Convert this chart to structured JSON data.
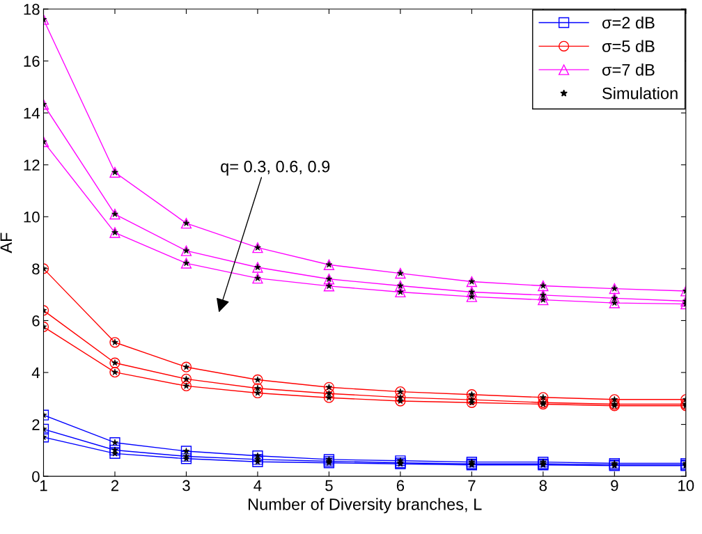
{
  "chart_data": {
    "type": "line",
    "xlabel": "Number of Diversity branches, L",
    "ylabel": "AF",
    "x": [
      1,
      2,
      3,
      4,
      5,
      6,
      7,
      8,
      9,
      10
    ],
    "xlim": [
      1,
      10
    ],
    "xticks": [
      1,
      2,
      3,
      4,
      5,
      6,
      7,
      8,
      9,
      10
    ],
    "ylim": [
      0,
      18
    ],
    "yticks": [
      0,
      2,
      4,
      6,
      8,
      10,
      12,
      14,
      16,
      18
    ],
    "grid": false,
    "legend": "top right",
    "line_style": "solid",
    "annotations": [
      "q= 0.3, 0.6, 0.9"
    ],
    "series": [
      {
        "name": "σ=2 dB",
        "color": "#0000ff",
        "marker": "square",
        "values": [
          2.36,
          1.3,
          0.97,
          0.79,
          0.65,
          0.6,
          0.55,
          0.55,
          0.5,
          0.5
        ]
      },
      {
        "color": "#0000ff",
        "marker": "square",
        "values": [
          1.82,
          1.01,
          0.77,
          0.65,
          0.58,
          0.52,
          0.48,
          0.48,
          0.44,
          0.44
        ]
      },
      {
        "color": "#0000ff",
        "marker": "square",
        "values": [
          1.51,
          0.88,
          0.68,
          0.56,
          0.52,
          0.48,
          0.44,
          0.44,
          0.41,
          0.41
        ]
      },
      {
        "name": "σ=5 dB",
        "color": "#ff0000",
        "marker": "circle",
        "values": [
          8.0,
          5.16,
          4.21,
          3.72,
          3.43,
          3.26,
          3.15,
          3.04,
          2.96,
          2.96
        ]
      },
      {
        "color": "#ff0000",
        "marker": "circle",
        "values": [
          6.39,
          4.37,
          3.75,
          3.39,
          3.19,
          3.04,
          2.95,
          2.84,
          2.78,
          2.78
        ]
      },
      {
        "color": "#ff0000",
        "marker": "circle",
        "values": [
          5.76,
          4.01,
          3.48,
          3.21,
          3.03,
          2.9,
          2.84,
          2.78,
          2.72,
          2.72
        ]
      },
      {
        "name": "σ=7 dB",
        "color": "#ff00ff",
        "marker": "triangle",
        "values": [
          17.6,
          11.71,
          9.75,
          8.81,
          8.15,
          7.82,
          7.5,
          7.34,
          7.23,
          7.14
        ]
      },
      {
        "color": "#ff00ff",
        "marker": "triangle",
        "values": [
          14.33,
          10.1,
          8.69,
          8.05,
          7.6,
          7.34,
          7.1,
          6.98,
          6.86,
          6.75
        ]
      },
      {
        "color": "#ff00ff",
        "marker": "triangle",
        "values": [
          12.89,
          9.39,
          8.21,
          7.63,
          7.33,
          7.1,
          6.92,
          6.8,
          6.68,
          6.64
        ]
      },
      {
        "name": "Simulation",
        "type": "scatter",
        "color": "#000000",
        "marker": "star",
        "x": [
          1,
          2,
          3,
          4,
          5,
          6,
          7,
          8,
          9,
          10,
          1,
          2,
          3,
          4,
          5,
          6,
          7,
          8,
          9,
          10,
          1,
          2,
          3,
          4,
          5,
          6,
          7,
          8,
          9,
          10,
          1,
          2,
          3,
          4,
          5,
          6,
          7,
          8,
          9,
          10,
          1,
          2,
          3,
          4,
          5,
          6,
          7,
          8,
          9,
          10,
          1,
          2,
          3,
          4,
          5,
          6,
          7,
          8,
          9,
          10,
          1,
          2,
          3,
          4,
          5,
          6,
          7,
          8,
          9,
          10,
          1,
          2,
          3,
          4,
          5,
          6,
          7,
          8,
          9,
          10,
          1,
          2,
          3,
          4,
          5,
          6,
          7,
          8,
          9,
          10
        ],
        "values": [
          2.36,
          1.3,
          0.97,
          0.79,
          0.65,
          0.6,
          0.55,
          0.55,
          0.5,
          0.5,
          1.82,
          1.01,
          0.77,
          0.65,
          0.58,
          0.52,
          0.48,
          0.48,
          0.44,
          0.44,
          1.51,
          0.88,
          0.68,
          0.56,
          0.52,
          0.48,
          0.44,
          0.44,
          0.41,
          0.41,
          8.0,
          5.16,
          4.21,
          3.72,
          3.43,
          3.26,
          3.15,
          3.04,
          2.96,
          2.96,
          6.39,
          4.37,
          3.75,
          3.39,
          3.19,
          3.04,
          2.95,
          2.84,
          2.78,
          2.78,
          5.76,
          4.01,
          3.48,
          3.21,
          3.03,
          2.9,
          2.84,
          2.78,
          2.72,
          2.72,
          17.6,
          11.71,
          9.75,
          8.81,
          8.15,
          7.82,
          7.5,
          7.34,
          7.23,
          7.14,
          14.33,
          10.1,
          8.69,
          8.05,
          7.6,
          7.34,
          7.1,
          6.98,
          6.86,
          6.75,
          12.89,
          9.39,
          8.21,
          7.63,
          7.33,
          7.1,
          6.92,
          6.8,
          6.68,
          6.64
        ]
      }
    ]
  }
}
